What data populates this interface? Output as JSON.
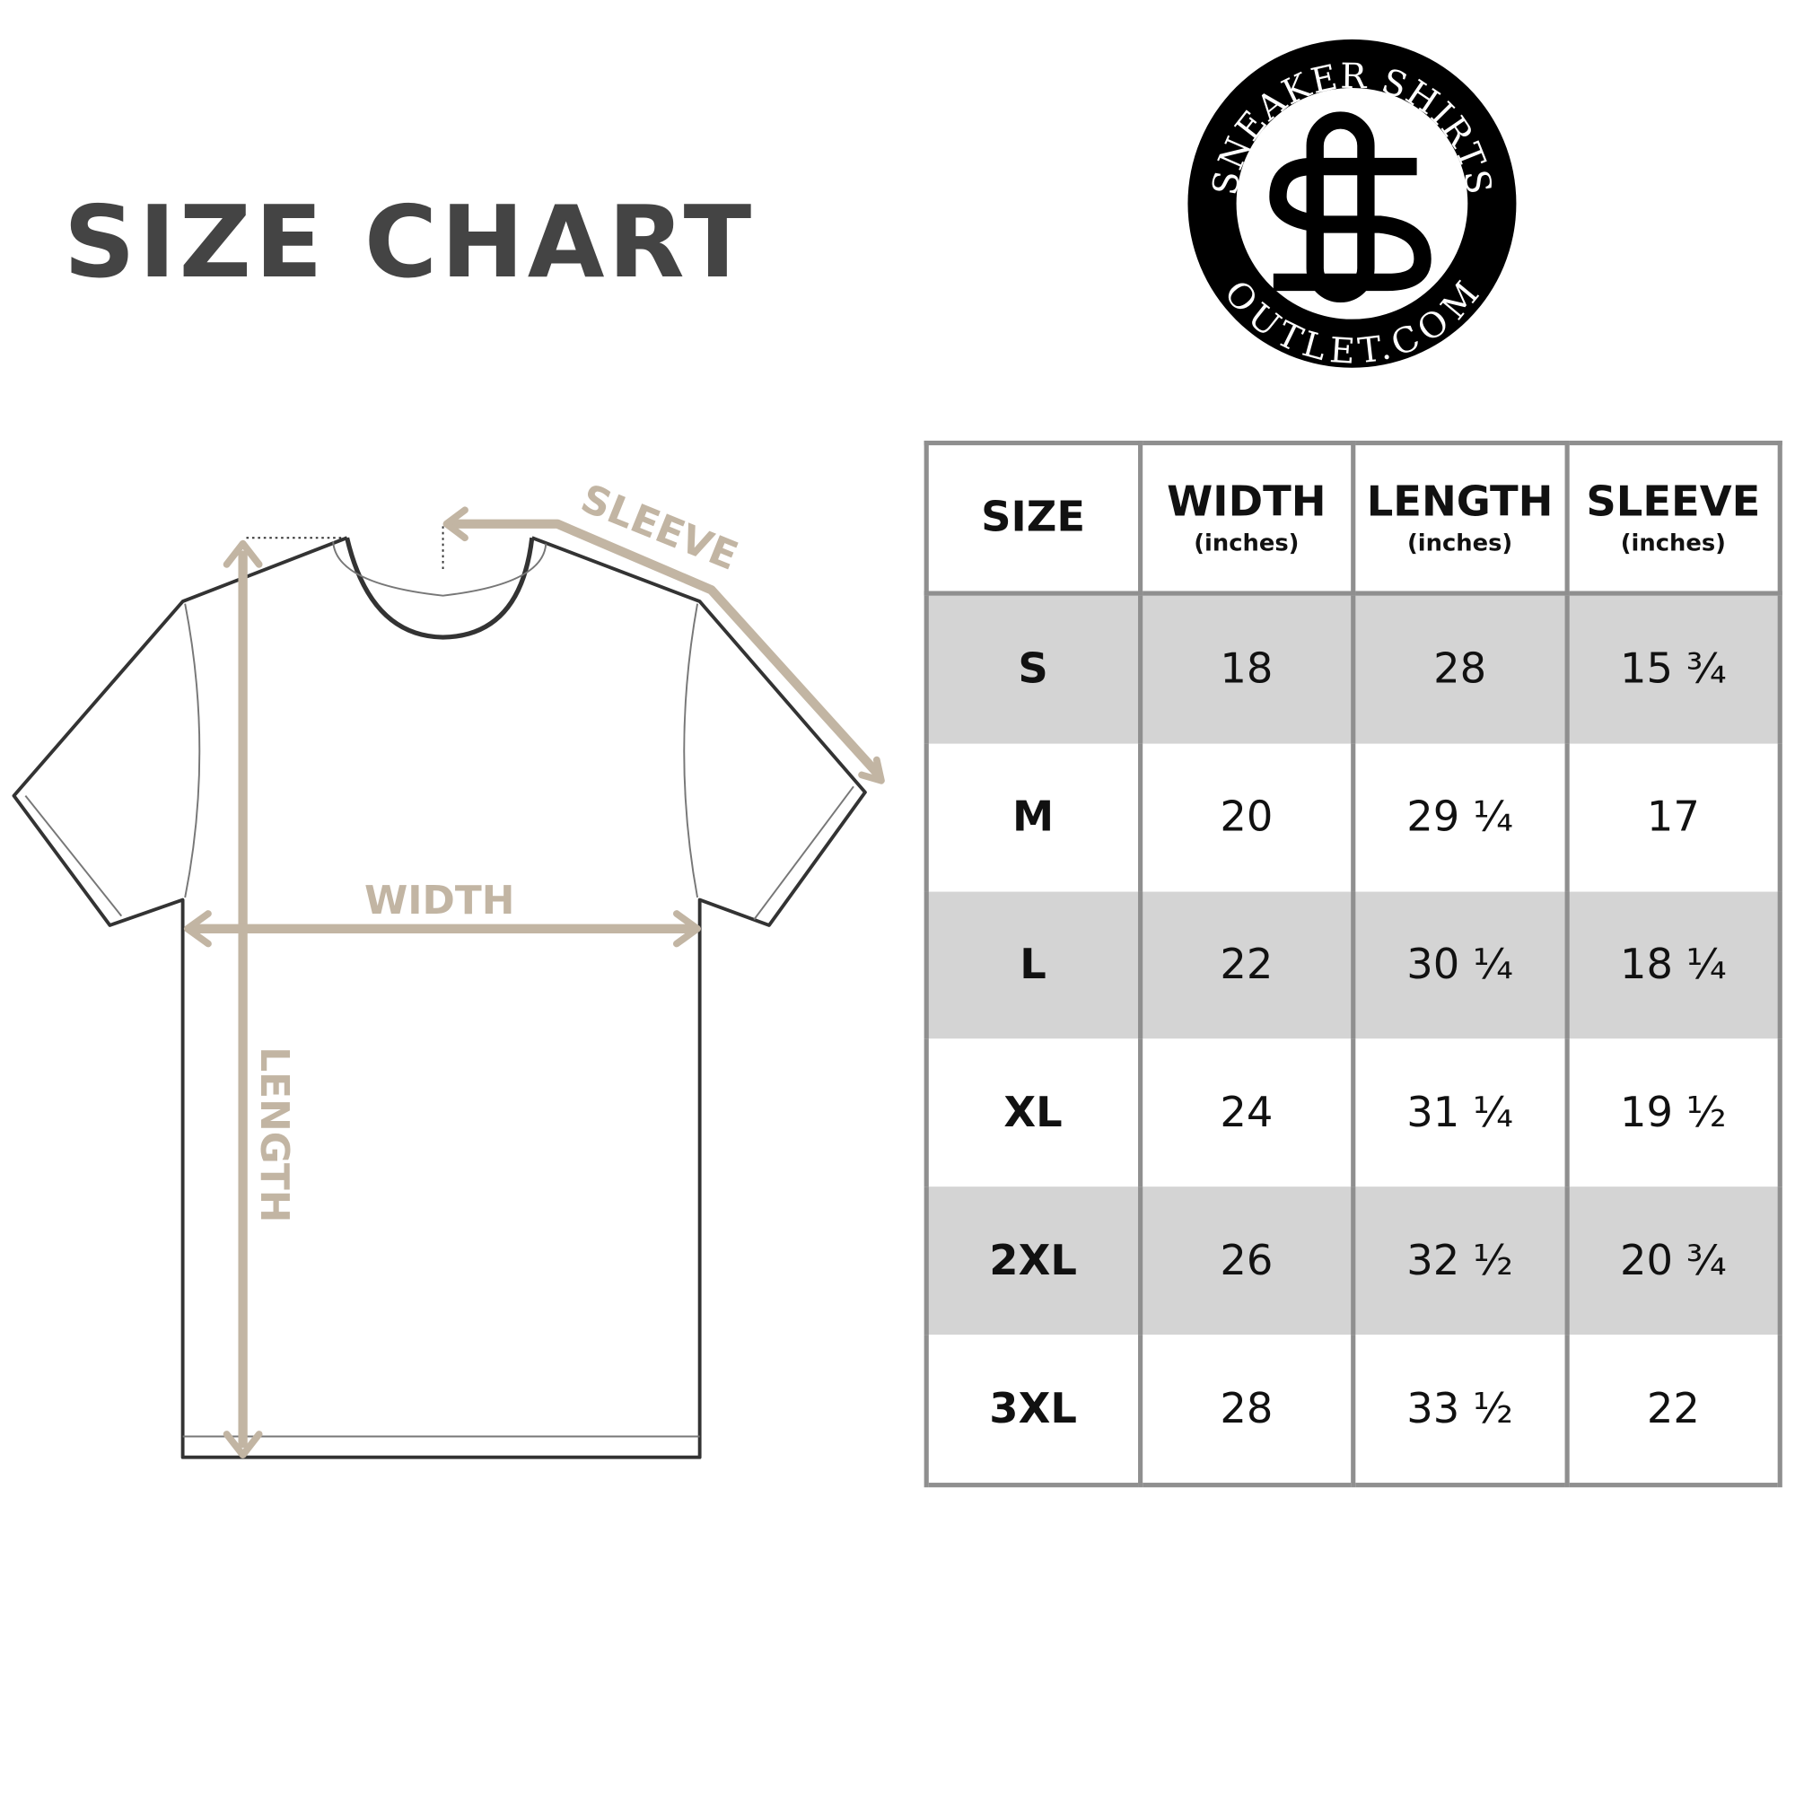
{
  "title": "SIZE CHART",
  "logo": {
    "top_text": "SNEAKER SHIRTS",
    "bottom_text": "OUTLET.COM",
    "monogram": "SO"
  },
  "diagram": {
    "sleeve_label": "SLEEVE",
    "width_label": "WIDTH",
    "length_label": "LENGTH",
    "arrow_color": "#c2b5a3"
  },
  "table": {
    "headers": [
      {
        "label": "SIZE",
        "unit": ""
      },
      {
        "label": "WIDTH",
        "unit": "(inches)"
      },
      {
        "label": "LENGTH",
        "unit": "(inches)"
      },
      {
        "label": "SLEEVE",
        "unit": "(inches)"
      }
    ],
    "rows": [
      [
        "S",
        "18",
        "28",
        "15 ¾"
      ],
      [
        "M",
        "20",
        "29 ¼",
        "17"
      ],
      [
        "L",
        "22",
        "30 ¼",
        "18 ¼"
      ],
      [
        "XL",
        "24",
        "31 ¼",
        "19 ½"
      ],
      [
        "2XL",
        "26",
        "32 ½",
        "20 ¾"
      ],
      [
        "3XL",
        "28",
        "33 ½",
        "22"
      ]
    ],
    "shade_color": "#d4d4d4",
    "border_color": "#8f8f8f"
  }
}
